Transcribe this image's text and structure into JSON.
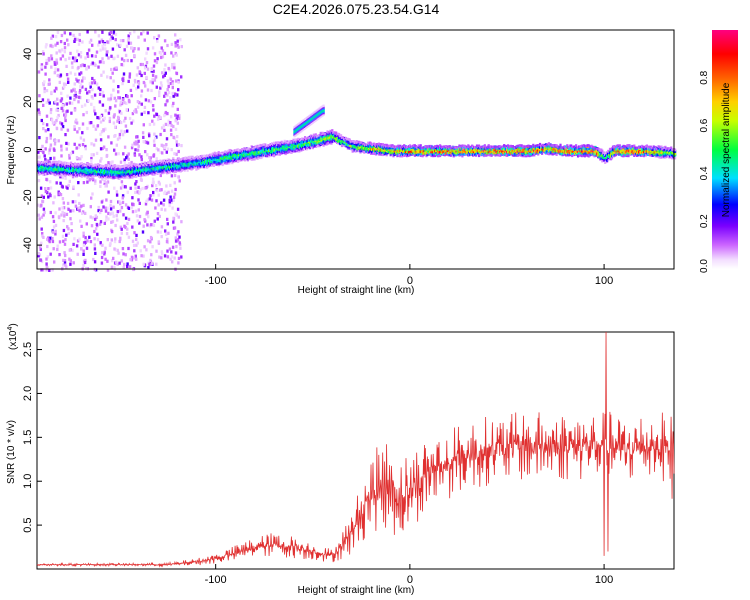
{
  "title": "C2E4.2026.075.23.54.G14",
  "chart_data": [
    {
      "type": "heatmap",
      "xlabel": "Height of straight line (km)",
      "ylabel": "Frequency (Hz)",
      "xlim": [
        -192,
        136
      ],
      "ylim": [
        -50,
        50
      ],
      "xticks": [
        -100,
        0,
        100
      ],
      "xtick_labels": [
        "-100",
        "0",
        "100"
      ],
      "yticks": [
        -40,
        -20,
        0,
        20,
        40
      ],
      "ytick_labels": [
        "-40",
        "-20",
        "0",
        "20",
        "40"
      ],
      "colorbar": {
        "label": "Normalized spectral amplitude",
        "range": [
          0,
          1
        ],
        "ticks": [
          0.0,
          0.2,
          0.4,
          0.6,
          0.8
        ],
        "tick_labels": [
          "0.0",
          "0.2",
          "0.4",
          "0.6",
          "0.8"
        ]
      },
      "ridge": {
        "x": [
          -192,
          -170,
          -150,
          -130,
          -110,
          -90,
          -75,
          -60,
          -50,
          -45,
          -40,
          -35,
          -30,
          -20,
          -10,
          0,
          20,
          40,
          60,
          70,
          80,
          95,
          100,
          105,
          120,
          136
        ],
        "freq": [
          -7,
          -8,
          -9,
          -7,
          -5,
          -2,
          0,
          2,
          4,
          5,
          6,
          4,
          2,
          1,
          0,
          0,
          0,
          0,
          0,
          1,
          0,
          0,
          -3,
          0,
          0,
          -1
        ],
        "peak_amplitude": [
          0.5,
          0.5,
          0.5,
          0.5,
          0.5,
          0.55,
          0.55,
          0.55,
          0.6,
          0.65,
          0.7,
          0.6,
          0.6,
          0.75,
          0.8,
          0.85,
          0.9,
          0.9,
          0.95,
          0.85,
          0.95,
          0.95,
          0.5,
          0.9,
          0.9,
          0.6
        ]
      },
      "secondary_branch": {
        "x": [
          -60,
          -55,
          -50,
          -45
        ],
        "freq": [
          8,
          11,
          14,
          17
        ]
      }
    },
    {
      "type": "line",
      "xlabel": "Height of straight line (km)",
      "ylabel": "SNR (10 * v/v)",
      "scale_label": "(x10",
      "scale_exponent": "4",
      "xlim": [
        -192,
        136
      ],
      "ylim": [
        0,
        27000
      ],
      "xticks": [
        -100,
        0,
        100
      ],
      "xtick_labels": [
        "-100",
        "0",
        "100"
      ],
      "yticks": [
        5000,
        10000,
        15000,
        20000,
        25000
      ],
      "ytick_labels": [
        "0.5",
        "1.0",
        "1.5",
        "2.0",
        "2.5"
      ],
      "color": "#e03030",
      "envelope": {
        "x": [
          -192,
          -150,
          -125,
          -110,
          -100,
          -90,
          -80,
          -70,
          -60,
          -50,
          -40,
          -30,
          -25,
          -20,
          -15,
          -10,
          -5,
          0,
          10,
          20,
          30,
          40,
          60,
          80,
          90,
          100,
          101,
          103,
          110,
          120,
          130,
          136
        ],
        "mean": [
          500,
          500,
          500,
          800,
          1200,
          1800,
          2500,
          2800,
          2500,
          2000,
          1500,
          4000,
          6500,
          8500,
          9500,
          9500,
          8000,
          9000,
          11000,
          12000,
          13000,
          13500,
          14000,
          14000,
          14000,
          14000,
          14000,
          14000,
          13500,
          14000,
          14000,
          13800
        ],
        "amplitude": [
          150,
          150,
          200,
          400,
          600,
          900,
          1200,
          1400,
          1300,
          1000,
          800,
          2500,
          3500,
          4500,
          5000,
          5500,
          5000,
          4500,
          4500,
          4000,
          4000,
          4000,
          4000,
          4000,
          4000,
          4000,
          4000,
          4000,
          4000,
          4000,
          4000,
          3800
        ]
      },
      "spikes": [
        {
          "x": 101,
          "value": 27000
        },
        {
          "x": 100,
          "value": 1500
        },
        {
          "x": 102,
          "value": 2000
        },
        {
          "x": 135,
          "value": 8000
        }
      ]
    }
  ]
}
